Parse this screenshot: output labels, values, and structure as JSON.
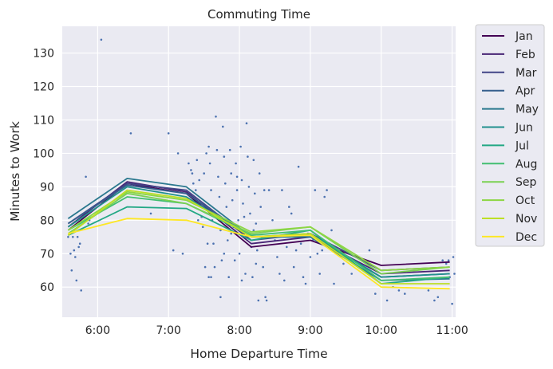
{
  "chart_data": {
    "type": "line",
    "title": "Commuting Time",
    "xlabel": "Home Departure Time",
    "ylabel": "Minutes to Work",
    "xlim": [
      "5:30",
      "11:03"
    ],
    "ylim": [
      51,
      138
    ],
    "x_ticks": [
      "6:00",
      "7:00",
      "8:00",
      "9:00",
      "10:00",
      "11:00"
    ],
    "y_ticks": [
      60,
      70,
      80,
      90,
      100,
      110,
      120,
      130
    ],
    "grid": true,
    "legend_position": "outside-right",
    "x": [
      "5:35",
      "6:25",
      "7:15",
      "8:10",
      "9:00",
      "10:00",
      "10:58"
    ],
    "series": [
      {
        "name": "Jan",
        "color": "#440154",
        "values": [
          77,
          91,
          88,
          72,
          74,
          66.5,
          67.5
        ]
      },
      {
        "name": "Feb",
        "color": "#482475",
        "values": [
          78,
          91.5,
          88.5,
          73,
          75,
          64,
          65
        ]
      },
      {
        "name": "Mar",
        "color": "#414487",
        "values": [
          79,
          91,
          89,
          74,
          76,
          65,
          66
        ]
      },
      {
        "name": "Apr",
        "color": "#355f8d",
        "values": [
          79,
          90.5,
          88,
          75,
          75.5,
          63,
          64
        ]
      },
      {
        "name": "May",
        "color": "#2a788e",
        "values": [
          80.5,
          92.5,
          90,
          75,
          75,
          62,
          62.5
        ]
      },
      {
        "name": "Jun",
        "color": "#21908d",
        "values": [
          78,
          90,
          87,
          75,
          76,
          63,
          64
        ]
      },
      {
        "name": "Jul",
        "color": "#22a884",
        "values": [
          75.5,
          84,
          83.5,
          74,
          77,
          61,
          63
        ]
      },
      {
        "name": "Aug",
        "color": "#42be71",
        "values": [
          77,
          87,
          85,
          75.5,
          77,
          62,
          63
        ]
      },
      {
        "name": "Sep",
        "color": "#7ad151",
        "values": [
          76,
          88,
          85,
          76,
          78,
          64,
          66
        ]
      },
      {
        "name": "Oct",
        "color": "#8dd644",
        "values": [
          77,
          88.5,
          86,
          76.5,
          78,
          65,
          66
        ]
      },
      {
        "name": "Nov",
        "color": "#bddf26",
        "values": [
          75.5,
          89,
          86.5,
          75,
          76,
          61,
          61
        ]
      },
      {
        "name": "Dec",
        "color": "#fde725",
        "values": [
          76,
          80.5,
          80,
          75,
          75.5,
          60,
          59.5
        ]
      }
    ],
    "scatter": {
      "color": "#4c72b0",
      "points": [
        [
          "5:35",
          75
        ],
        [
          "5:37",
          70
        ],
        [
          "5:38",
          65
        ],
        [
          "5:39",
          75
        ],
        [
          "5:40",
          71
        ],
        [
          "5:41",
          69
        ],
        [
          "5:42",
          62
        ],
        [
          "5:43",
          75
        ],
        [
          "5:44",
          72
        ],
        [
          "5:45",
          73
        ],
        [
          "5:46",
          59
        ],
        [
          "5:50",
          93
        ],
        [
          "5:52",
          79
        ],
        [
          "5:53",
          80
        ],
        [
          "6:03",
          134
        ],
        [
          "6:28",
          106
        ],
        [
          "6:45",
          82
        ],
        [
          "7:00",
          106
        ],
        [
          "7:04",
          71
        ],
        [
          "7:08",
          100
        ],
        [
          "7:12",
          70
        ],
        [
          "7:17",
          97
        ],
        [
          "7:19",
          95
        ],
        [
          "7:20",
          94
        ],
        [
          "7:21",
          91
        ],
        [
          "7:22",
          86
        ],
        [
          "7:23",
          89
        ],
        [
          "7:24",
          98
        ],
        [
          "7:25",
          80
        ],
        [
          "7:26",
          92
        ],
        [
          "7:27",
          85
        ],
        [
          "7:28",
          81
        ],
        [
          "7:29",
          78
        ],
        [
          "7:30",
          94
        ],
        [
          "7:31",
          66
        ],
        [
          "7:32",
          100
        ],
        [
          "7:33",
          73
        ],
        [
          "7:34",
          102
        ],
        [
          "7:35",
          97
        ],
        [
          "7:36",
          89
        ],
        [
          "7:37",
          80
        ],
        [
          "7:38",
          73
        ],
        [
          "7:39",
          66
        ],
        [
          "7:40",
          111
        ],
        [
          "7:41",
          101
        ],
        [
          "7:42",
          93
        ],
        [
          "7:43",
          87
        ],
        [
          "7:44",
          77
        ],
        [
          "7:45",
          68
        ],
        [
          "7:46",
          108
        ],
        [
          "7:47",
          99
        ],
        [
          "7:48",
          91
        ],
        [
          "7:49",
          84
        ],
        [
          "7:50",
          74
        ],
        [
          "7:51",
          63
        ],
        [
          "7:52",
          101
        ],
        [
          "7:53",
          94
        ],
        [
          "7:54",
          86
        ],
        [
          "7:55",
          78
        ],
        [
          "7:56",
          68
        ],
        [
          "7:57",
          97
        ],
        [
          "7:58",
          89
        ],
        [
          "7:59",
          80
        ],
        [
          "8:00",
          70
        ],
        [
          "8:01",
          102
        ],
        [
          "8:02",
          92
        ],
        [
          "8:03",
          85
        ],
        [
          "8:04",
          76
        ],
        [
          "8:05",
          64
        ],
        [
          "8:06",
          109
        ],
        [
          "8:07",
          99
        ],
        [
          "8:08",
          90
        ],
        [
          "8:09",
          82
        ],
        [
          "8:10",
          72
        ],
        [
          "8:11",
          63
        ],
        [
          "8:12",
          98
        ],
        [
          "8:13",
          88
        ],
        [
          "8:14",
          79
        ],
        [
          "8:15",
          71
        ],
        [
          "8:16",
          56
        ],
        [
          "8:17",
          94
        ],
        [
          "8:18",
          84
        ],
        [
          "8:19",
          75
        ],
        [
          "8:20",
          66
        ],
        [
          "8:21",
          89
        ],
        [
          "8:22",
          57
        ],
        [
          "8:23",
          56
        ],
        [
          "7:34",
          63
        ],
        [
          "7:36",
          63
        ],
        [
          "7:44",
          57
        ],
        [
          "7:47",
          70
        ],
        [
          "7:53",
          76
        ],
        [
          "7:58",
          93
        ],
        [
          "8:02",
          62
        ],
        [
          "8:04",
          81
        ],
        [
          "8:12",
          77
        ],
        [
          "8:14",
          67
        ],
        [
          "8:25",
          89
        ],
        [
          "8:28",
          80
        ],
        [
          "8:30",
          74
        ],
        [
          "8:32",
          69
        ],
        [
          "8:34",
          64
        ],
        [
          "8:36",
          89
        ],
        [
          "8:38",
          62
        ],
        [
          "8:40",
          72
        ],
        [
          "8:42",
          84
        ],
        [
          "8:44",
          82
        ],
        [
          "8:46",
          66
        ],
        [
          "8:48",
          71
        ],
        [
          "8:50",
          96
        ],
        [
          "8:52",
          73
        ],
        [
          "8:54",
          63
        ],
        [
          "8:56",
          61
        ],
        [
          "8:58",
          76
        ],
        [
          "9:00",
          69
        ],
        [
          "9:02",
          74
        ],
        [
          "9:04",
          89
        ],
        [
          "9:06",
          70
        ],
        [
          "9:08",
          64
        ],
        [
          "9:10",
          71
        ],
        [
          "9:12",
          87
        ],
        [
          "9:14",
          89
        ],
        [
          "9:16",
          73
        ],
        [
          "9:18",
          77
        ],
        [
          "9:20",
          61
        ],
        [
          "9:28",
          67
        ],
        [
          "9:35",
          64
        ],
        [
          "9:50",
          71
        ],
        [
          "9:55",
          58
        ],
        [
          "10:05",
          56
        ],
        [
          "10:10",
          60
        ],
        [
          "10:15",
          59
        ],
        [
          "10:20",
          58
        ],
        [
          "10:40",
          59
        ],
        [
          "10:45",
          56
        ],
        [
          "10:48",
          57
        ],
        [
          "10:52",
          68
        ],
        [
          "10:55",
          67
        ],
        [
          "10:57",
          68
        ],
        [
          "10:58",
          63
        ],
        [
          "11:00",
          55
        ],
        [
          "11:01",
          69
        ],
        [
          "11:02",
          64
        ]
      ]
    }
  }
}
